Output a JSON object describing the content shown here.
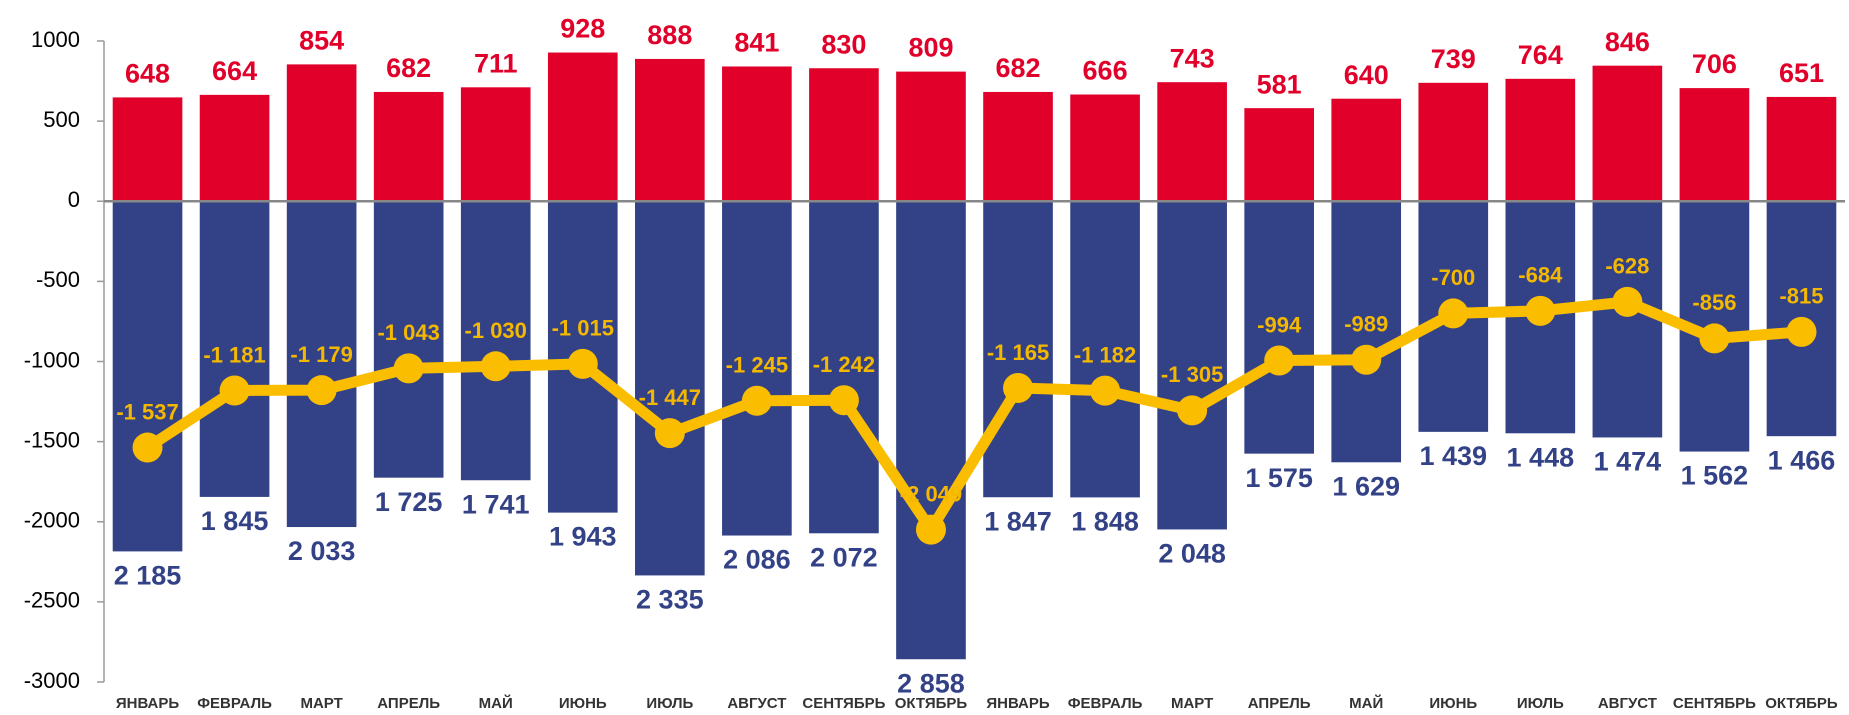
{
  "chart_data": {
    "type": "bar_line",
    "categories": [
      "ЯНВАРЬ",
      "ФЕВРАЛЬ",
      "МАРТ",
      "АПРЕЛЬ",
      "МАЙ",
      "ИЮНЬ",
      "ИЮЛЬ",
      "АВГУСТ",
      "СЕНТЯБРЬ",
      "ОКТЯБРЬ",
      "ЯНВАРЬ",
      "ФЕВРАЛЬ",
      "МАРТ",
      "АПРЕЛЬ",
      "МАЙ",
      "ИЮНЬ",
      "ИЮЛЬ",
      "АВГУСТ",
      "СЕНТЯБРЬ",
      "ОКТЯБРЬ"
    ],
    "series": [
      {
        "kind": "bar",
        "color": "#e0002a",
        "label_color": "#e0002a",
        "label_side": "above",
        "values": [
          648,
          664,
          854,
          682,
          711,
          928,
          888,
          841,
          830,
          809,
          682,
          666,
          743,
          581,
          640,
          739,
          764,
          846,
          706,
          651
        ]
      },
      {
        "kind": "bar",
        "color": "#334286",
        "label_color": "#334286",
        "label_side": "below",
        "values": [
          -2185,
          -1845,
          -2033,
          -1725,
          -1741,
          -1943,
          -2335,
          -2086,
          -2072,
          -2858,
          -1847,
          -1848,
          -2048,
          -1575,
          -1629,
          -1439,
          -1448,
          -1474,
          -1562,
          -1466
        ],
        "value_labels": [
          "2 185",
          "1 845",
          "2 033",
          "1 725",
          "1 741",
          "1 943",
          "2 335",
          "2 086",
          "2 072",
          "2 858",
          "1 847",
          "1 848",
          "2 048",
          "1 575",
          "1 629",
          "1 439",
          "1 448",
          "1 474",
          "1 562",
          "1 466"
        ]
      },
      {
        "kind": "line",
        "color": "#fbbd00",
        "label_color": "#f5b800",
        "label_side": "above",
        "values": [
          -1537,
          -1181,
          -1179,
          -1043,
          -1030,
          -1015,
          -1447,
          -1245,
          -1242,
          -2049,
          -1165,
          -1182,
          -1305,
          -994,
          -989,
          -700,
          -684,
          -628,
          -856,
          -815
        ],
        "value_labels": [
          "-1 537",
          "-1 181",
          "-1 179",
          "-1 043",
          "-1 030",
          "-1 015",
          "-1 447",
          "-1 245",
          "-1 242",
          "-2 049",
          "-1 165",
          "-1 182",
          "-1 305",
          "-994",
          "-989",
          "-700",
          "-684",
          "-628",
          "-856",
          "-815"
        ]
      }
    ],
    "ylim": [
      -3000,
      1000
    ],
    "yticks": [
      -3000,
      -2500,
      -2000,
      -1500,
      -1000,
      -500,
      0,
      500,
      1000
    ],
    "grid": false
  }
}
